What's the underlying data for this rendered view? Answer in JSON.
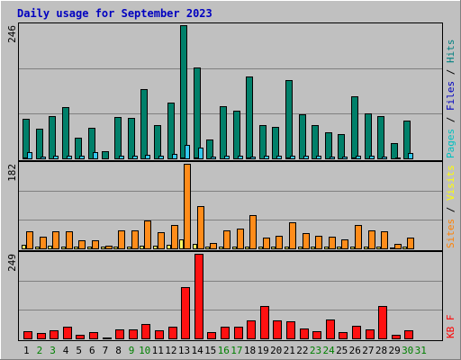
{
  "title": "Daily usage for September 2023",
  "colors": {
    "background": "#c0c0c0",
    "frame": "#ffffff",
    "title": "#0000c0",
    "gridline": "#808080",
    "axis_label": "#000000",
    "pages": "#00c0c0",
    "files": "#0000c0",
    "hits": "#008080",
    "sites": "#ff8000",
    "visits": "#ffff00",
    "kbf": "#ff0000",
    "weekday": "#000000",
    "weekend": "#008000",
    "legend_sep": "#000000",
    "hits_bar": "#00806a",
    "files_bar": "#0000c0",
    "pages_bar": "#33c8ee",
    "sites_bar": "#ff8c1a",
    "visits_bar": "#ffff66",
    "kbf_bar": "#ff1111"
  },
  "chart_data": [
    {
      "type": "bar",
      "panel": "hits-files-pages",
      "title": "Daily usage for September 2023",
      "y_max_label": "246",
      "ylim": [
        0,
        246
      ],
      "legend": [
        {
          "label": "Pages",
          "key": "pages"
        },
        {
          "label": "Files",
          "key": "files"
        },
        {
          "label": "Hits",
          "key": "hits"
        }
      ],
      "categories": [
        "1",
        "2",
        "3",
        "4",
        "5",
        "6",
        "7",
        "8",
        "9",
        "10",
        "11",
        "12",
        "13",
        "14",
        "15",
        "16",
        "17",
        "18",
        "19",
        "20",
        "21",
        "22",
        "23",
        "24",
        "25",
        "26",
        "27",
        "28",
        "29",
        "30",
        "31"
      ],
      "series": [
        {
          "name": "Hits",
          "values": [
            74,
            56,
            80,
            95,
            40,
            58,
            15,
            77,
            76,
            128,
            63,
            104,
            246,
            169,
            36,
            97,
            89,
            152,
            62,
            60,
            146,
            83,
            62,
            50,
            46,
            115,
            84,
            80,
            30,
            71,
            0
          ]
        },
        {
          "name": "Files",
          "values": [
            3,
            2,
            2,
            2,
            2,
            2,
            2,
            2,
            2,
            2,
            2,
            2,
            3,
            3,
            2,
            2,
            2,
            3,
            2,
            2,
            3,
            2,
            2,
            2,
            2,
            3,
            2,
            2,
            2,
            2,
            0
          ]
        },
        {
          "name": "Pages",
          "values": [
            14,
            5,
            7,
            7,
            6,
            14,
            0,
            6,
            6,
            8,
            7,
            10,
            26,
            22,
            5,
            7,
            6,
            5,
            6,
            6,
            7,
            6,
            6,
            5,
            5,
            7,
            6,
            5,
            4,
            11,
            0
          ]
        }
      ]
    },
    {
      "type": "bar",
      "panel": "sites-visits",
      "y_max_label": "182",
      "ylim": [
        0,
        182
      ],
      "legend": [
        {
          "label": "Sites",
          "key": "sites"
        },
        {
          "label": "Visits",
          "key": "visits"
        }
      ],
      "categories": [
        "1",
        "2",
        "3",
        "4",
        "5",
        "6",
        "7",
        "8",
        "9",
        "10",
        "11",
        "12",
        "13",
        "14",
        "15",
        "16",
        "17",
        "18",
        "19",
        "20",
        "21",
        "22",
        "23",
        "24",
        "25",
        "26",
        "27",
        "28",
        "29",
        "30",
        "31"
      ],
      "series": [
        {
          "name": "Visits",
          "values": [
            9,
            6,
            7,
            6,
            5,
            6,
            6,
            6,
            6,
            8,
            7,
            9,
            22,
            12,
            5,
            6,
            6,
            6,
            5,
            6,
            6,
            5,
            5,
            5,
            5,
            6,
            5,
            5,
            4,
            6,
            0
          ]
        },
        {
          "name": "Sites",
          "values": [
            38,
            26,
            38,
            38,
            19,
            20,
            8,
            40,
            40,
            62,
            36,
            52,
            182,
            92,
            14,
            40,
            45,
            73,
            25,
            28,
            58,
            34,
            28,
            26,
            22,
            51,
            41,
            38,
            12,
            24,
            0
          ]
        }
      ]
    },
    {
      "type": "bar",
      "panel": "kbf",
      "y_max_label": "249",
      "ylim": [
        0,
        249
      ],
      "legend": [
        {
          "label": "KB F",
          "key": "kbf"
        }
      ],
      "categories": [
        "1",
        "2",
        "3",
        "4",
        "5",
        "6",
        "7",
        "8",
        "9",
        "10",
        "11",
        "12",
        "13",
        "14",
        "15",
        "16",
        "17",
        "18",
        "19",
        "20",
        "21",
        "22",
        "23",
        "24",
        "25",
        "26",
        "27",
        "28",
        "29",
        "30",
        "31"
      ],
      "series": [
        {
          "name": "KB F",
          "values": [
            24,
            18,
            26,
            38,
            14,
            20,
            6,
            28,
            28,
            44,
            26,
            38,
            153,
            249,
            20,
            36,
            36,
            56,
            98,
            56,
            52,
            32,
            24,
            58,
            20,
            40,
            30,
            98,
            12,
            26,
            0
          ]
        }
      ]
    }
  ],
  "weekend_days": [
    "2",
    "3",
    "9",
    "10",
    "16",
    "17",
    "23",
    "24",
    "30",
    "31"
  ]
}
